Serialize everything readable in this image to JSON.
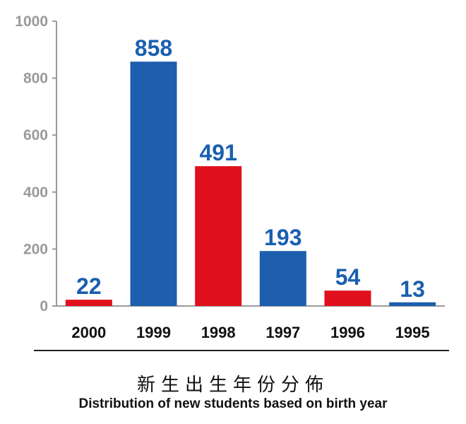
{
  "chart_data": {
    "type": "bar",
    "categories": [
      "2000",
      "1999",
      "1998",
      "1997",
      "1996",
      "1995"
    ],
    "values": [
      22,
      858,
      491,
      193,
      54,
      13
    ],
    "bar_colors": [
      "#e0101e",
      "#1d5eae",
      "#e0101e",
      "#1d5eae",
      "#e0101e",
      "#1d5eae"
    ],
    "data_labels": [
      "22",
      "858",
      "491",
      "193",
      "54",
      "13"
    ],
    "title": "新生出生年份分佈",
    "subtitle": "Distribution of new students based on birth year",
    "xlabel": "",
    "ylabel": "",
    "ylim": [
      0,
      1000
    ],
    "yticks": [
      0,
      200,
      400,
      600,
      800,
      1000
    ],
    "grid": false,
    "legend": "none",
    "colors": {
      "red": "#e0101e",
      "blue": "#1d5eae",
      "label_blue": "#1a5fb0",
      "axis_gray": "#9a9a9a"
    }
  }
}
